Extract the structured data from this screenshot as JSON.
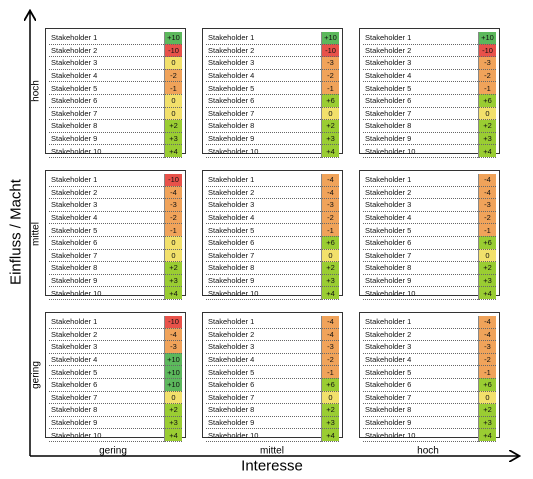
{
  "axes": {
    "y_title": "Einfluss / Macht",
    "x_title": "Interesse",
    "y_levels": [
      "hoch",
      "mittel",
      "gering"
    ],
    "x_levels": [
      "gering",
      "mittel",
      "hoch"
    ]
  },
  "colors": {
    "strong_positive": "#5cb85c",
    "positive": "#9acd32",
    "neutral": "#f2e06b",
    "negative": "#f0a35a",
    "strong_negative": "#e8524a"
  },
  "stakeholders": [
    "Stakeholder 1",
    "Stakeholder 2",
    "Stakeholder 3",
    "Stakeholder 4",
    "Stakeholder 5",
    "Stakeholder 6",
    "Stakeholder 7",
    "Stakeholder 8",
    "Stakeholder 9",
    "Stakeholder 10"
  ],
  "grid": [
    [
      {
        "values": [
          "+10",
          "-10",
          "0",
          "-2",
          "-1",
          "0",
          "0",
          "+2",
          "+3",
          "+4"
        ]
      },
      {
        "values": [
          "+10",
          "-10",
          "-3",
          "-2",
          "-1",
          "+6",
          "0",
          "+2",
          "+3",
          "+4"
        ]
      },
      {
        "values": [
          "+10",
          "-10",
          "-3",
          "-2",
          "-1",
          "+6",
          "0",
          "+2",
          "+3",
          "+4"
        ]
      }
    ],
    [
      {
        "values": [
          "-10",
          "-4",
          "-3",
          "-2",
          "-1",
          "0",
          "0",
          "+2",
          "+3",
          "+4"
        ]
      },
      {
        "values": [
          "-4",
          "-4",
          "-3",
          "-2",
          "-1",
          "+6",
          "0",
          "+2",
          "+3",
          "+4"
        ]
      },
      {
        "values": [
          "-4",
          "-4",
          "-3",
          "-2",
          "-1",
          "+6",
          "0",
          "+2",
          "+3",
          "+4"
        ]
      }
    ],
    [
      {
        "values": [
          "-10",
          "-4",
          "-3",
          "+10",
          "+10",
          "+10",
          "0",
          "+2",
          "+3",
          "+4"
        ]
      },
      {
        "values": [
          "-4",
          "-4",
          "-3",
          "-2",
          "-1",
          "+6",
          "0",
          "+2",
          "+3",
          "+4"
        ]
      },
      {
        "values": [
          "-4",
          "-4",
          "-3",
          "-2",
          "-1",
          "+6",
          "0",
          "+2",
          "+3",
          "+4"
        ]
      }
    ]
  ]
}
